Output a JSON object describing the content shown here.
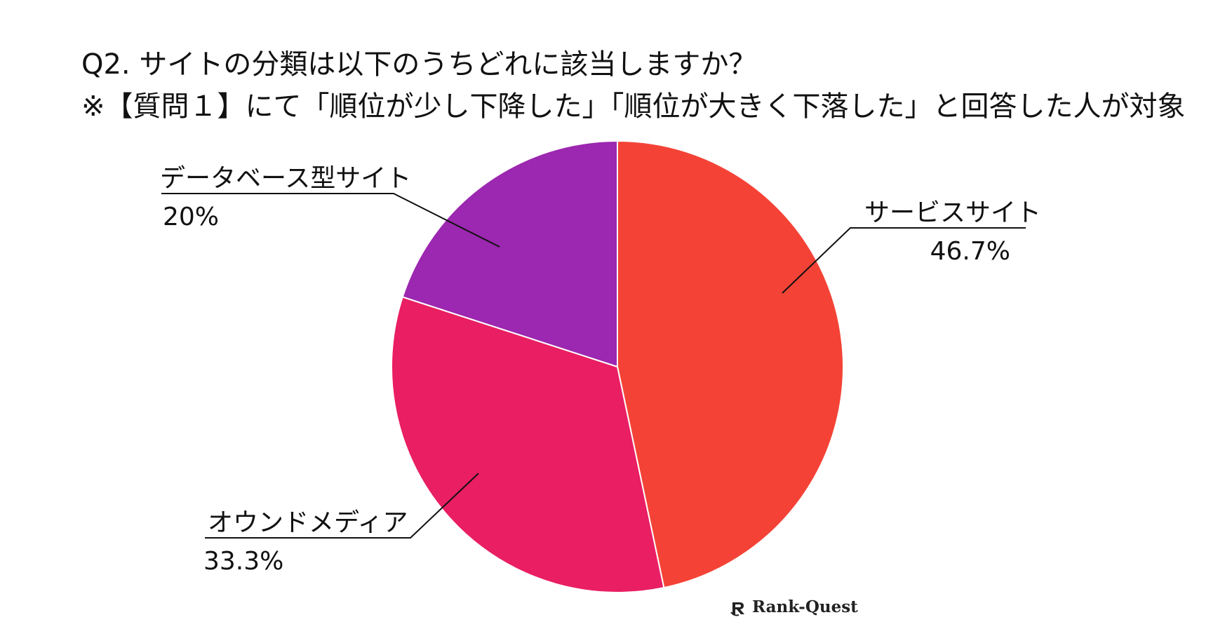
{
  "title": {
    "line1": "Q2. サイトの分類は以下のうちどれに該当しますか？",
    "line2": "※【質問１】にて「順位が少し下降した」「順位が大きく下落した」と回答した人が対象"
  },
  "chart_data": {
    "type": "pie",
    "title": "Q2. サイトの分類は以下のうちどれに該当しますか？",
    "subtitle": "※【質問１】にて「順位が少し下降した」「順位が大きく下落した」と回答した人が対象",
    "slices": [
      {
        "label": "サービスサイト",
        "value": 46.7,
        "value_label": "46.7%",
        "color": "#f44336"
      },
      {
        "label": "オウンドメディア",
        "value": 33.3,
        "value_label": "33.3%",
        "color": "#e91e63"
      },
      {
        "label": "データベース型サイト",
        "value": 20,
        "value_label": "20%",
        "color": "#9c27b0"
      }
    ],
    "start_angle": "12 o'clock",
    "direction": "clockwise",
    "legend": "none"
  },
  "watermark": {
    "text": "Rank-Quest",
    "icon": "rank-quest-logo-icon"
  }
}
